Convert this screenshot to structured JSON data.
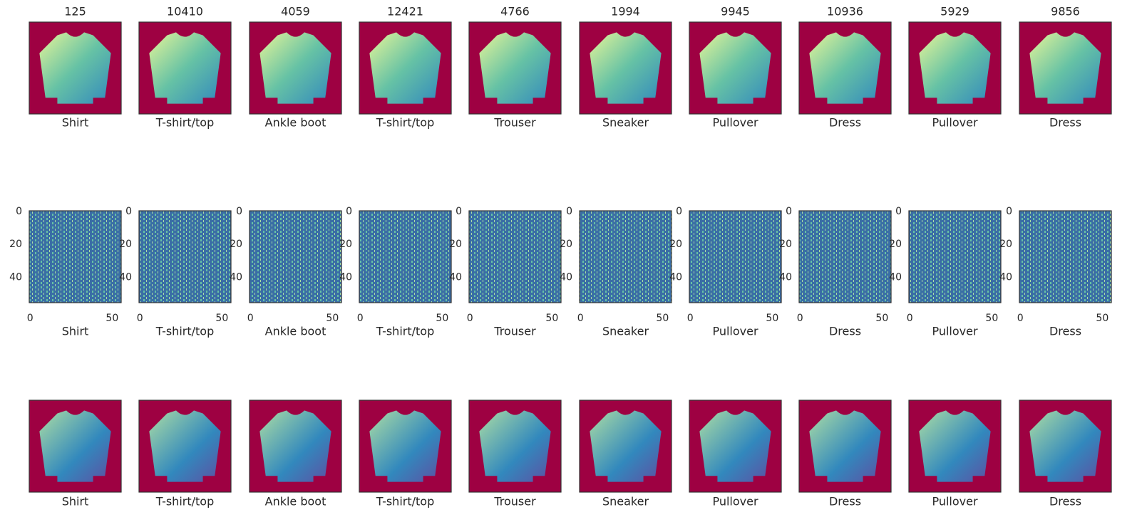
{
  "columns": [
    {
      "title": "125",
      "label": "Shirt"
    },
    {
      "title": "10410",
      "label": "T-shirt/top"
    },
    {
      "title": "4059",
      "label": "Ankle boot"
    },
    {
      "title": "12421",
      "label": "T-shirt/top"
    },
    {
      "title": "4766",
      "label": "Trouser"
    },
    {
      "title": "1994",
      "label": "Sneaker"
    },
    {
      "title": "9945",
      "label": "Pullover"
    },
    {
      "title": "10936",
      "label": "Dress"
    },
    {
      "title": "5929",
      "label": "Pullover"
    },
    {
      "title": "9856",
      "label": "Dress"
    }
  ],
  "middle_axes": {
    "xticks": [
      0,
      50
    ],
    "yticks": [
      0,
      20,
      40
    ],
    "size": 56
  }
}
